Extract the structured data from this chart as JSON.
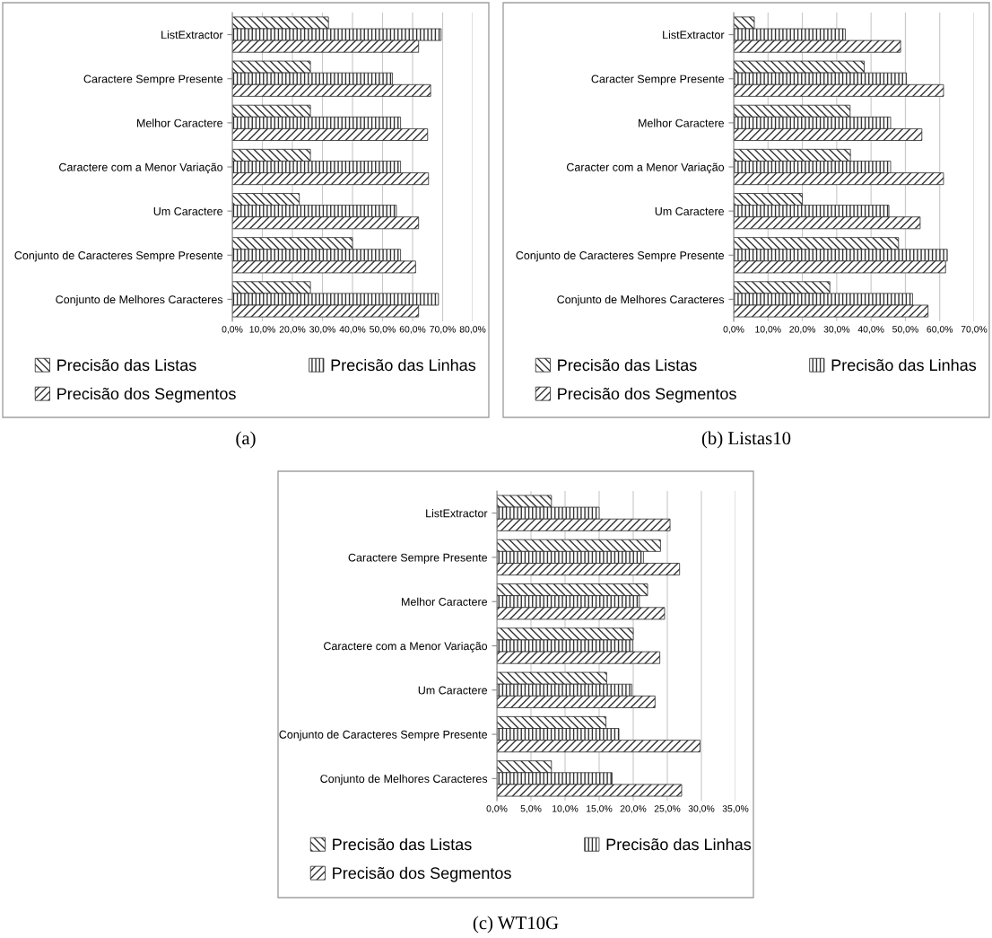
{
  "chart_data": [
    {
      "type": "bar",
      "orientation": "horizontal",
      "title": "(a)",
      "grid": "x",
      "legend": "bottom",
      "categories": [
        "ListExtractor",
        "Caractere Sempre Presente",
        "Melhor Caractere",
        "Caractere com a Menor Variação",
        "Um Caractere",
        "Conjunto de Caracteres Sempre Presente",
        "Conjunto de Melhores Caracteres"
      ],
      "xlim": [
        0,
        80
      ],
      "xticks": [
        {
          "value": 0,
          "label": "0,0%"
        },
        {
          "value": 10,
          "label": "10,0%"
        },
        {
          "value": 20,
          "label": "20,0%"
        },
        {
          "value": 30,
          "label": "30,0%"
        },
        {
          "value": 40,
          "label": "40,0%"
        },
        {
          "value": 50,
          "label": "50,0%"
        },
        {
          "value": 60,
          "label": "60,0%"
        },
        {
          "value": 70,
          "label": "70,0%"
        },
        {
          "value": 80,
          "label": "80,0%"
        }
      ],
      "series": [
        {
          "name": "Precisão das Listas",
          "color": "#333333",
          "values": [
            32,
            26,
            26,
            26,
            22.3,
            40,
            26
          ]
        },
        {
          "name": "Precisão das Linhas",
          "color": "#333333",
          "values": [
            69.5,
            53.3,
            56,
            56,
            54.6,
            56,
            68.6
          ]
        },
        {
          "name": "Precisão dos Segmentos",
          "color": "#333333",
          "values": [
            62,
            66,
            65,
            65.3,
            62,
            61,
            62
          ]
        }
      ]
    },
    {
      "type": "bar",
      "orientation": "horizontal",
      "title": "(b) Listas10",
      "grid": "x",
      "legend": "bottom",
      "categories": [
        "ListExtractor",
        "Caracter Sempre Presente",
        "Melhor Caractere",
        "Caracter com a Menor Variação",
        "Um Caractere",
        "Conjunto de Caracteres Sempre Presente",
        "Conjunto de Melhores Caracteres"
      ],
      "xlim": [
        0,
        70
      ],
      "xticks": [
        {
          "value": 0,
          "label": "0,0%"
        },
        {
          "value": 10,
          "label": "10,0%"
        },
        {
          "value": 20,
          "label": "20,0%"
        },
        {
          "value": 30,
          "label": "30,0%"
        },
        {
          "value": 40,
          "label": "40,0%"
        },
        {
          "value": 50,
          "label": "50,0%"
        },
        {
          "value": 60,
          "label": "60,0%"
        },
        {
          "value": 70,
          "label": "70,0%"
        }
      ],
      "series": [
        {
          "name": "Precisão das Listas",
          "color": "#333333",
          "values": [
            6,
            38,
            33.9,
            34,
            20,
            48,
            28
          ]
        },
        {
          "name": "Precisão das Linhas",
          "color": "#333333",
          "values": [
            32.5,
            50.3,
            45.7,
            45.7,
            45.2,
            62.2,
            52.1
          ]
        },
        {
          "name": "Precisão dos Segmentos",
          "color": "#333333",
          "values": [
            48.6,
            61.1,
            54.8,
            61.1,
            54.3,
            61.7,
            56.6
          ]
        }
      ]
    },
    {
      "type": "bar",
      "orientation": "horizontal",
      "title": "(c) WT10G",
      "grid": "x",
      "legend": "bottom",
      "categories": [
        "ListExtractor",
        "Caractere Sempre Presente",
        "Melhor Caractere",
        "Caractere com a Menor Variação",
        "Um Caractere",
        "Conjunto de Caracteres Sempre Presente",
        "Conjunto de Melhores Caracteres"
      ],
      "xlim": [
        0,
        35
      ],
      "xticks": [
        {
          "value": 0,
          "label": "0,0%"
        },
        {
          "value": 5,
          "label": "5,0%"
        },
        {
          "value": 10,
          "label": "10,0%"
        },
        {
          "value": 15,
          "label": "15,0%"
        },
        {
          "value": 20,
          "label": "20,0%"
        },
        {
          "value": 25,
          "label": "25,0%"
        },
        {
          "value": 30,
          "label": "30,0%"
        },
        {
          "value": 35,
          "label": "35,0%"
        }
      ],
      "series": [
        {
          "name": "Precisão das Listas",
          "color": "#333333",
          "values": [
            8,
            24,
            22.1,
            20,
            16.1,
            16,
            8
          ]
        },
        {
          "name": "Precisão das Linhas",
          "color": "#333333",
          "values": [
            15,
            21.5,
            20.9,
            19.9,
            19.8,
            17.9,
            16.9
          ]
        },
        {
          "name": "Precisão dos Segmentos",
          "color": "#333333",
          "values": [
            25.4,
            26.8,
            24.6,
            23.9,
            23.2,
            29.8,
            27.1
          ]
        }
      ]
    }
  ]
}
